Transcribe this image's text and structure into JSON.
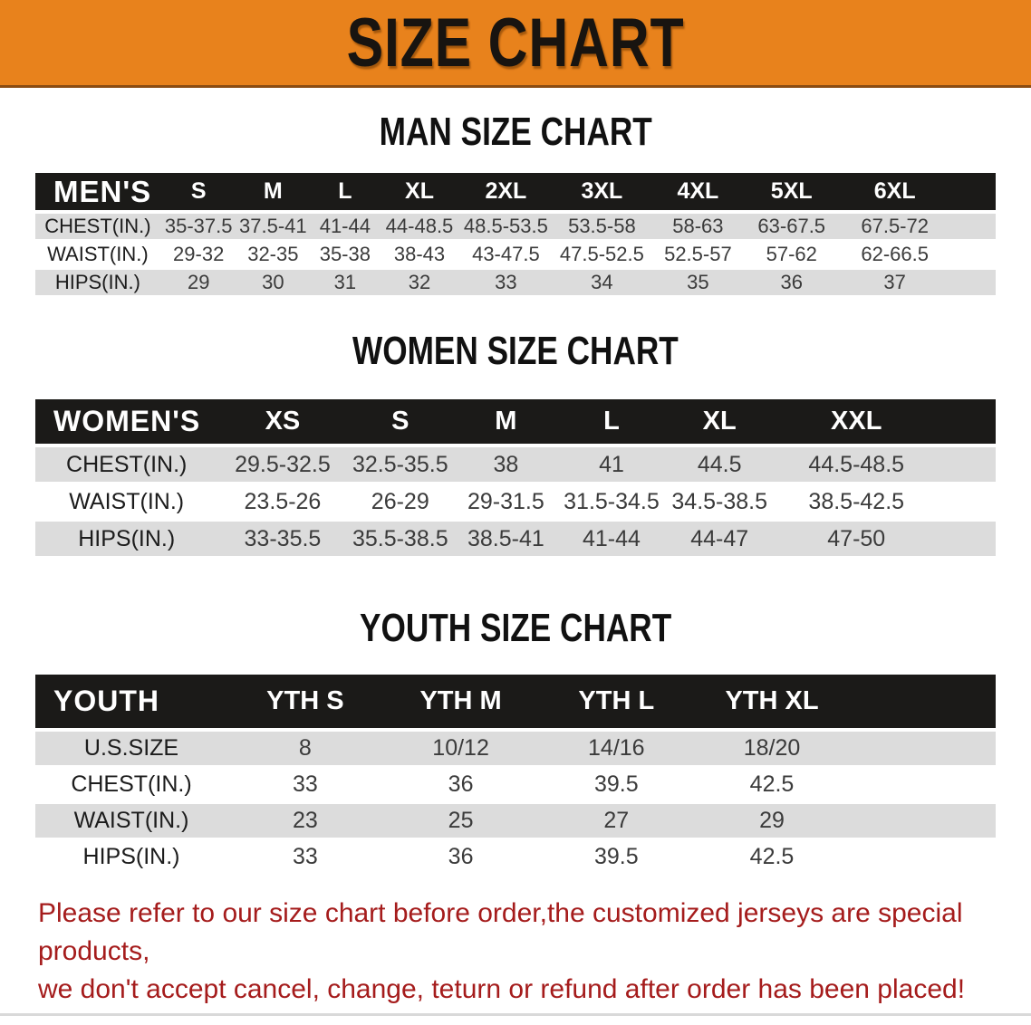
{
  "banner": {
    "title": "SIZE CHART",
    "bg_color": "#e8821c",
    "text_color": "#181410"
  },
  "sections": [
    {
      "heading": "MAN SIZE CHART",
      "table": {
        "label": "MEN'S",
        "columns": [
          "S",
          "M",
          "L",
          "XL",
          "2XL",
          "3XL",
          "4XL",
          "5XL",
          "6XL"
        ],
        "rows": [
          {
            "label": "CHEST(IN.)",
            "values": [
              "35-37.5",
              "37.5-41",
              "41-44",
              "44-48.5",
              "48.5-53.5",
              "53.5-58",
              "58-63",
              "63-67.5",
              "67.5-72"
            ]
          },
          {
            "label": "WAIST(IN.)",
            "values": [
              "29-32",
              "32-35",
              "35-38",
              "38-43",
              "43-47.5",
              "47.5-52.5",
              "52.5-57",
              "57-62",
              "62-66.5"
            ]
          },
          {
            "label": "HIPS(IN.)",
            "values": [
              "29",
              "30",
              "31",
              "32",
              "33",
              "34",
              "35",
              "36",
              "37"
            ]
          }
        ]
      }
    },
    {
      "heading": "WOMEN SIZE CHART",
      "table": {
        "label": "WOMEN'S",
        "columns": [
          "XS",
          "S",
          "M",
          "L",
          "XL",
          "XXL"
        ],
        "rows": [
          {
            "label": "CHEST(IN.)",
            "values": [
              "29.5-32.5",
              "32.5-35.5",
              "38",
              "41",
              "44.5",
              "44.5-48.5"
            ]
          },
          {
            "label": "WAIST(IN.)",
            "values": [
              "23.5-26",
              "26-29",
              "29-31.5",
              "31.5-34.5",
              "34.5-38.5",
              "38.5-42.5"
            ]
          },
          {
            "label": "HIPS(IN.)",
            "values": [
              "33-35.5",
              "35.5-38.5",
              "38.5-41",
              "41-44",
              "44-47",
              "47-50"
            ]
          }
        ]
      }
    },
    {
      "heading": "YOUTH SIZE CHART",
      "table": {
        "label": "YOUTH",
        "columns": [
          "YTH S",
          "YTH M",
          "YTH L",
          "YTH XL"
        ],
        "rows": [
          {
            "label": "U.S.SIZE",
            "values": [
              "8",
              "10/12",
              "14/16",
              "18/20"
            ]
          },
          {
            "label": "CHEST(IN.)",
            "values": [
              "33",
              "36",
              "39.5",
              "42.5"
            ]
          },
          {
            "label": "WAIST(IN.)",
            "values": [
              "23",
              "25",
              "27",
              "29"
            ]
          },
          {
            "label": "HIPS(IN.)",
            "values": [
              "33",
              "36",
              "39.5",
              "42.5"
            ]
          }
        ]
      }
    }
  ],
  "disclaimer": {
    "line1": "Please refer to our size chart before order,the customized jerseys are special products,",
    "line2": "we don't accept cancel, change, teturn or refund after order has been placed!",
    "text_color": "#a51c1c"
  },
  "colors": {
    "header_bar": "#1b1a18",
    "shaded_row": "#dcdcdc",
    "banner_orange": "#e8821c"
  }
}
